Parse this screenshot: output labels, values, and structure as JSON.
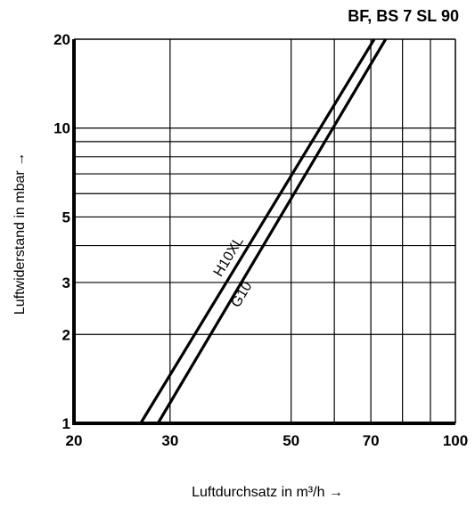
{
  "chart_data": {
    "type": "line",
    "title": "BF, BS 7 SL 90",
    "xlabel": "Luftdurchsatz in m³/h →",
    "ylabel": "Luftwiderstand in mbar →",
    "x_scale": "log",
    "y_scale": "log",
    "xlim": [
      20,
      100
    ],
    "ylim": [
      1,
      20
    ],
    "x_ticks": [
      {
        "value": 20,
        "label": "20"
      },
      {
        "value": 30,
        "label": "30"
      },
      {
        "value": 50,
        "label": "50"
      },
      {
        "value": 70,
        "label": "70"
      },
      {
        "value": 100,
        "label": "100"
      }
    ],
    "y_ticks": [
      {
        "value": 1,
        "label": "1"
      },
      {
        "value": 2,
        "label": "2"
      },
      {
        "value": 3,
        "label": "3"
      },
      {
        "value": 5,
        "label": "5"
      },
      {
        "value": 10,
        "label": "10"
      },
      {
        "value": 20,
        "label": "20"
      }
    ],
    "x_grid": [
      30,
      50,
      60,
      70,
      80,
      90
    ],
    "y_grid": [
      2,
      3,
      4,
      5,
      6,
      7,
      8,
      9,
      10
    ],
    "grid": true,
    "legend": "none",
    "series": [
      {
        "name": "H10XL",
        "x": [
          26.5,
          71
        ],
        "y": [
          1,
          20
        ]
      },
      {
        "name": "G10",
        "x": [
          28.5,
          74.5
        ],
        "y": [
          1,
          20
        ]
      }
    ]
  }
}
